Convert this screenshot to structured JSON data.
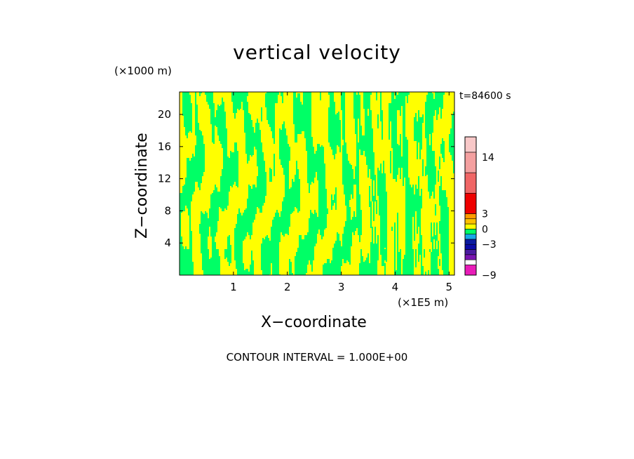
{
  "chart_data": {
    "type": "heatmap",
    "title": "vertical velocity",
    "xlabel": "X−coordinate",
    "ylabel": "Z−coordinate",
    "x_unit_label": "(×1E5 m)",
    "y_unit_label": "(×1000 m)",
    "time_label": "t=84600 s",
    "footer": "CONTOUR INTERVAL = 1.000E+00",
    "xlim": [
      0,
      5.1
    ],
    "ylim": [
      0,
      22.8
    ],
    "x_ticks": [
      "1",
      "2",
      "3",
      "4",
      "5"
    ],
    "y_ticks": [
      "4",
      "8",
      "12",
      "16",
      "20"
    ],
    "colorbar": {
      "tick_labels": [
        "14",
        "3",
        "0",
        "−3",
        "−9"
      ],
      "tick_values": [
        14,
        3,
        0,
        -3,
        -9
      ],
      "segments": [
        {
          "from": -9,
          "to": -7,
          "color": "#e81cb8"
        },
        {
          "from": -7,
          "to": -6,
          "color": "#ffffff"
        },
        {
          "from": -6,
          "to": -5,
          "color": "#7a14b0"
        },
        {
          "from": -5,
          "to": -4,
          "color": "#4a1aa0"
        },
        {
          "from": -4,
          "to": -3,
          "color": "#0a0aa8"
        },
        {
          "from": -3,
          "to": -2,
          "color": "#0a1aa0"
        },
        {
          "from": -2,
          "to": -1,
          "color": "#18a8e8"
        },
        {
          "from": -1,
          "to": 0,
          "color": "#00ff66"
        },
        {
          "from": 0,
          "to": 1,
          "color": "#ffff00"
        },
        {
          "from": 1,
          "to": 2,
          "color": "#ffc000"
        },
        {
          "from": 2,
          "to": 3,
          "color": "#ff9a00"
        },
        {
          "from": 3,
          "to": 7,
          "color": "#ee0000"
        },
        {
          "from": 7,
          "to": 11,
          "color": "#f06666"
        },
        {
          "from": 11,
          "to": 15,
          "color": "#f4a0a0"
        },
        {
          "from": 15,
          "to": 18,
          "color": "#f8c8c8"
        }
      ]
    },
    "field_colors": {
      "positive": "#ffff00",
      "negative": "#00ff66"
    },
    "grid": false,
    "legend": "colorbar right"
  }
}
